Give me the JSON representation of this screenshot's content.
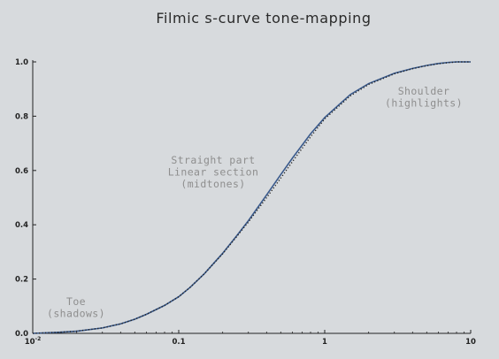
{
  "chart_data": {
    "type": "line",
    "title": "Filmic s-curve tone-mapping",
    "xlabel": "",
    "ylabel": "",
    "xscale": "log",
    "xlim": [
      0.01,
      10
    ],
    "ylim": [
      0,
      1.0
    ],
    "grid": false,
    "x_ticks": [
      {
        "base": "10",
        "exp": "-2"
      },
      {
        "base": "0.1",
        "exp": ""
      },
      {
        "base": "1",
        "exp": ""
      },
      {
        "base": "10",
        "exp": ""
      }
    ],
    "y_ticks": [
      "0.0",
      "0.2",
      "0.4",
      "0.6",
      "0.8",
      "1.0"
    ],
    "series": [
      {
        "style": "solid",
        "color": "#3a5a8c",
        "x": [
          0.01,
          0.015,
          0.02,
          0.03,
          0.04,
          0.05,
          0.06,
          0.08,
          0.1,
          0.12,
          0.15,
          0.2,
          0.25,
          0.3,
          0.4,
          0.5,
          0.6,
          0.8,
          1.0,
          1.5,
          2.0,
          3.0,
          4.0,
          5.0,
          6.0,
          7.0,
          8.0,
          10.0
        ],
        "values": [
          0.0,
          0.004,
          0.008,
          0.02,
          0.035,
          0.052,
          0.07,
          0.103,
          0.135,
          0.17,
          0.22,
          0.295,
          0.36,
          0.415,
          0.51,
          0.585,
          0.645,
          0.735,
          0.795,
          0.88,
          0.92,
          0.958,
          0.976,
          0.987,
          0.994,
          0.998,
          1.0,
          1.0
        ]
      },
      {
        "style": "dotted",
        "color": "#222222",
        "x": [
          0.01,
          0.015,
          0.02,
          0.03,
          0.04,
          0.05,
          0.06,
          0.08,
          0.1,
          0.12,
          0.15,
          0.2,
          0.25,
          0.3,
          0.4,
          0.5,
          0.6,
          0.8,
          1.0,
          1.5,
          2.0,
          3.0,
          4.0,
          5.0,
          6.0,
          7.0,
          8.0,
          10.0
        ],
        "values": [
          0.0,
          0.004,
          0.008,
          0.02,
          0.035,
          0.052,
          0.07,
          0.103,
          0.135,
          0.17,
          0.22,
          0.293,
          0.357,
          0.41,
          0.5,
          0.572,
          0.632,
          0.724,
          0.79,
          0.875,
          0.917,
          0.956,
          0.975,
          0.986,
          0.993,
          0.997,
          1.0,
          1.0
        ]
      }
    ],
    "annotations": [
      {
        "lines": [
          "Toe",
          "(shadows)"
        ]
      },
      {
        "lines": [
          "Straight part",
          "Linear section",
          "(midtones)"
        ]
      },
      {
        "lines": [
          "Shoulder",
          "(highlights)"
        ]
      }
    ]
  }
}
